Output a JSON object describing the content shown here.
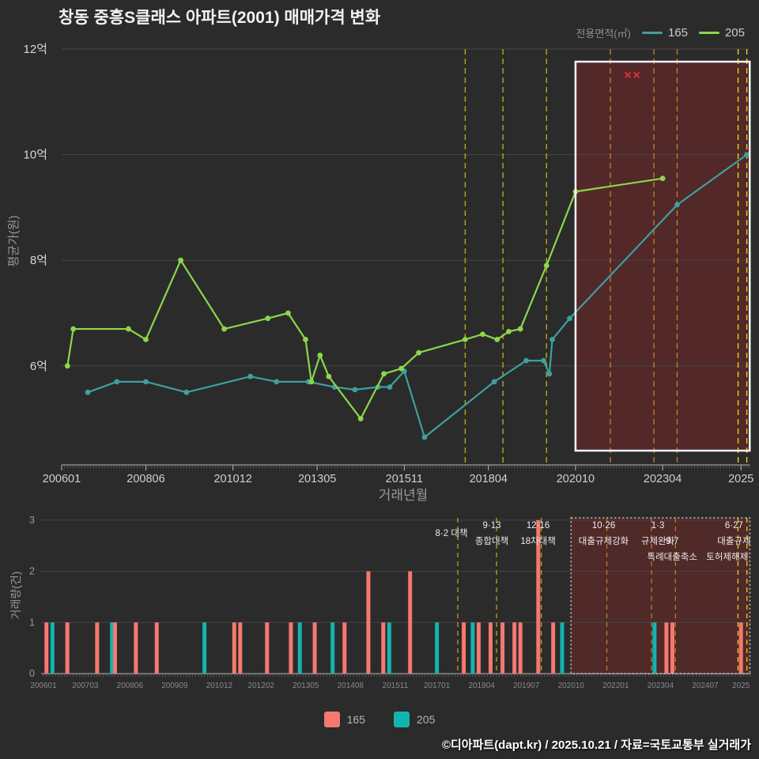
{
  "page": {
    "title": "창동 중흥S클래스 아파트(2001) 매매가격 변화",
    "footer": "©디아파트(dapt.kr) / 2025.10.21 / 자료=국토교통부 실거래가",
    "background": "#2b2b2b"
  },
  "top_legend": {
    "label": "전용면적(㎡)",
    "items": [
      {
        "name": "165",
        "color": "#3f9f9f"
      },
      {
        "name": "205",
        "color": "#8cd74a"
      }
    ]
  },
  "bottom_legend": {
    "items": [
      {
        "name": "165",
        "color": "#f4796f"
      },
      {
        "name": "205",
        "color": "#12b5ae"
      }
    ]
  },
  "policy_events": [
    {
      "date": "201708",
      "color": "#b8a716",
      "dx": -8,
      "labels": [
        {
          "text": "8·2 대책",
          "row": 0.5
        }
      ]
    },
    {
      "date": "201809",
      "color": "#b8a716",
      "dx": -6,
      "labels": [
        {
          "text": "9·13",
          "row": 0
        },
        {
          "text": "종합대책",
          "row": 1
        }
      ]
    },
    {
      "date": "201912",
      "color": "#b8a716",
      "dx": -4,
      "labels": [
        {
          "text": "12·16",
          "row": 0
        },
        {
          "text": "18차대책",
          "row": 1
        }
      ]
    },
    {
      "date": "202110",
      "color": "#bc7b28",
      "dx": -4,
      "labels": [
        {
          "text": "10·26",
          "row": 0
        },
        {
          "text": "대출규제강화",
          "row": 1
        }
      ]
    },
    {
      "date": "202301",
      "color": "#bc7b28",
      "dx": 8,
      "labels": [
        {
          "text": "1·3",
          "row": 0
        },
        {
          "text": "규제완화",
          "row": 1
        }
      ]
    },
    {
      "date": "202309",
      "color": "#bc7b28",
      "dx": -4,
      "labels": [
        {
          "text": "9·7",
          "row": 1
        },
        {
          "text": "특례대출축소",
          "row": 2
        }
      ]
    },
    {
      "date": "202506",
      "color": "#e6d414",
      "dx": -5,
      "labels": [
        {
          "text": "6·27",
          "row": 0
        },
        {
          "text": "대출규제",
          "row": 1
        }
      ]
    },
    {
      "date": "202509",
      "color": "#e6d414",
      "dx": -25,
      "labels": [
        {
          "text": "토허제해제",
          "row": 2
        }
      ]
    }
  ],
  "chart_data": [
    {
      "type": "line",
      "title": "매매가격 변화",
      "xlabel": "거래년월",
      "ylabel": "평균가(원)",
      "ylim": [
        4.4,
        12.2
      ],
      "grid": true,
      "legend_position": "top-right",
      "yticks": [
        {
          "v": 6,
          "label": "6억"
        },
        {
          "v": 8,
          "label": "8억"
        },
        {
          "v": 10,
          "label": "10억"
        },
        {
          "v": 12,
          "label": "12억"
        }
      ],
      "xticks": [
        {
          "m": "200601",
          "label": "200601"
        },
        {
          "m": "200806",
          "label": "200806"
        },
        {
          "m": "201012",
          "label": "201012"
        },
        {
          "m": "201305",
          "label": "201305"
        },
        {
          "m": "201511",
          "label": "201511"
        },
        {
          "m": "201804",
          "label": "201804"
        },
        {
          "m": "202010",
          "label": "202010"
        },
        {
          "m": "202304",
          "label": "202304"
        },
        {
          "m": "202507",
          "label": "2025"
        }
      ],
      "series": [
        {
          "name": "165",
          "color": "#3f9f9f",
          "points": [
            [
              "200610",
              5.5
            ],
            [
              "200708",
              5.7
            ],
            [
              "200806",
              5.7
            ],
            [
              "200908",
              5.5
            ],
            [
              "201106",
              5.8
            ],
            [
              "201203",
              5.7
            ],
            [
              "201302",
              5.7
            ],
            [
              "201311",
              5.6
            ],
            [
              "201406",
              5.55
            ],
            [
              "201502",
              5.6
            ],
            [
              "201506",
              5.6
            ],
            [
              "201511",
              5.9
            ],
            [
              "201606",
              4.65
            ],
            [
              "201806",
              5.7
            ],
            [
              "201905",
              6.1
            ],
            [
              "201911",
              6.1
            ],
            [
              "202001",
              5.85
            ],
            [
              "202002",
              6.5
            ],
            [
              "202008",
              6.9
            ],
            [
              "202309",
              9.05
            ],
            [
              "202509",
              10.0
            ]
          ]
        },
        {
          "name": "205",
          "color": "#8cd74a",
          "points": [
            [
              "200603",
              6.0
            ],
            [
              "200605",
              6.7
            ],
            [
              "200712",
              6.7
            ],
            [
              "200806",
              6.5
            ],
            [
              "200906",
              8.0
            ],
            [
              "201009",
              6.7
            ],
            [
              "201112",
              6.9
            ],
            [
              "201207",
              7.0
            ],
            [
              "201301",
              6.5
            ],
            [
              "201303",
              5.7
            ],
            [
              "201306",
              6.2
            ],
            [
              "201309",
              5.8
            ],
            [
              "201408",
              5.0
            ],
            [
              "201504",
              5.85
            ],
            [
              "201510",
              5.95
            ],
            [
              "201604",
              6.25
            ],
            [
              "201708",
              6.5
            ],
            [
              "201802",
              6.6
            ],
            [
              "201807",
              6.5
            ],
            [
              "201811",
              6.65
            ],
            [
              "201903",
              6.7
            ],
            [
              "201912",
              7.9
            ],
            [
              "202010",
              9.3
            ],
            [
              "202304",
              9.55
            ]
          ]
        }
      ],
      "outliers": {
        "mark": "✕",
        "color": "#e03434",
        "points": [
          {
            "x": "202204",
            "y": 11.5
          },
          {
            "x": "202207",
            "y": 11.5
          }
        ]
      },
      "highlight": {
        "from": "202010",
        "to": "202510",
        "fill": "rgba(165,35,35,0.32)",
        "border": "#f5f5f5"
      }
    },
    {
      "type": "bar",
      "ylabel": "거래량(건)",
      "ylim": [
        0,
        3
      ],
      "grid": true,
      "yticks": [
        0,
        1,
        2,
        3
      ],
      "xticks": [
        {
          "m": "200601",
          "label": "200601"
        },
        {
          "m": "200703",
          "label": "200703"
        },
        {
          "m": "200806",
          "label": "200806"
        },
        {
          "m": "200909",
          "label": "200909"
        },
        {
          "m": "201012",
          "label": "201012"
        },
        {
          "m": "201202",
          "label": "201202"
        },
        {
          "m": "201305",
          "label": "201305"
        },
        {
          "m": "201408",
          "label": "201408"
        },
        {
          "m": "201511",
          "label": "201511"
        },
        {
          "m": "201701",
          "label": "201701"
        },
        {
          "m": "201804",
          "label": "201804"
        },
        {
          "m": "201907",
          "label": "201907"
        },
        {
          "m": "202010",
          "label": "202010"
        },
        {
          "m": "202201",
          "label": "202201"
        },
        {
          "m": "202304",
          "label": "202304"
        },
        {
          "m": "202407",
          "label": "202407"
        },
        {
          "m": "202507",
          "label": "2025"
        }
      ],
      "colors": {
        "165": "#f4796f",
        "205": "#12b5ae"
      },
      "bars": [
        {
          "x": "200602",
          "series": "165",
          "count": 1
        },
        {
          "x": "200604",
          "series": "205",
          "count": 1
        },
        {
          "x": "200609",
          "series": "165",
          "count": 1
        },
        {
          "x": "200707",
          "series": "165",
          "count": 1
        },
        {
          "x": "200712",
          "series": "205",
          "count": 1
        },
        {
          "x": "200801",
          "series": "165",
          "count": 1
        },
        {
          "x": "200808",
          "series": "165",
          "count": 1
        },
        {
          "x": "200903",
          "series": "165",
          "count": 1
        },
        {
          "x": "201007",
          "series": "205",
          "count": 1
        },
        {
          "x": "201105",
          "series": "165",
          "count": 1
        },
        {
          "x": "201107",
          "series": "165",
          "count": 1
        },
        {
          "x": "201204",
          "series": "165",
          "count": 1
        },
        {
          "x": "201212",
          "series": "165",
          "count": 1
        },
        {
          "x": "201303",
          "series": "205",
          "count": 1
        },
        {
          "x": "201308",
          "series": "165",
          "count": 1
        },
        {
          "x": "201402",
          "series": "205",
          "count": 1
        },
        {
          "x": "201406",
          "series": "165",
          "count": 1
        },
        {
          "x": "201502",
          "series": "165",
          "count": 2
        },
        {
          "x": "201507",
          "series": "165",
          "count": 1
        },
        {
          "x": "201509",
          "series": "205",
          "count": 1
        },
        {
          "x": "201604",
          "series": "165",
          "count": 2
        },
        {
          "x": "201701",
          "series": "205",
          "count": 1
        },
        {
          "x": "201710",
          "series": "165",
          "count": 1
        },
        {
          "x": "201801",
          "series": "205",
          "count": 1
        },
        {
          "x": "201803",
          "series": "165",
          "count": 1
        },
        {
          "x": "201807",
          "series": "165",
          "count": 1
        },
        {
          "x": "201811",
          "series": "165",
          "count": 1
        },
        {
          "x": "201903",
          "series": "165",
          "count": 1
        },
        {
          "x": "201905",
          "series": "165",
          "count": 1
        },
        {
          "x": "201911",
          "series": "165",
          "count": 3
        },
        {
          "x": "202004",
          "series": "165",
          "count": 1
        },
        {
          "x": "202007",
          "series": "205",
          "count": 1
        },
        {
          "x": "202302",
          "series": "205",
          "count": 1
        },
        {
          "x": "202306",
          "series": "165",
          "count": 1
        },
        {
          "x": "202308",
          "series": "165",
          "count": 1
        },
        {
          "x": "202507",
          "series": "165",
          "count": 1
        }
      ],
      "highlight": {
        "from": "202010",
        "to": "202510",
        "fill": "rgba(165,35,35,0.30)",
        "border": "#c8c8c8"
      }
    }
  ]
}
